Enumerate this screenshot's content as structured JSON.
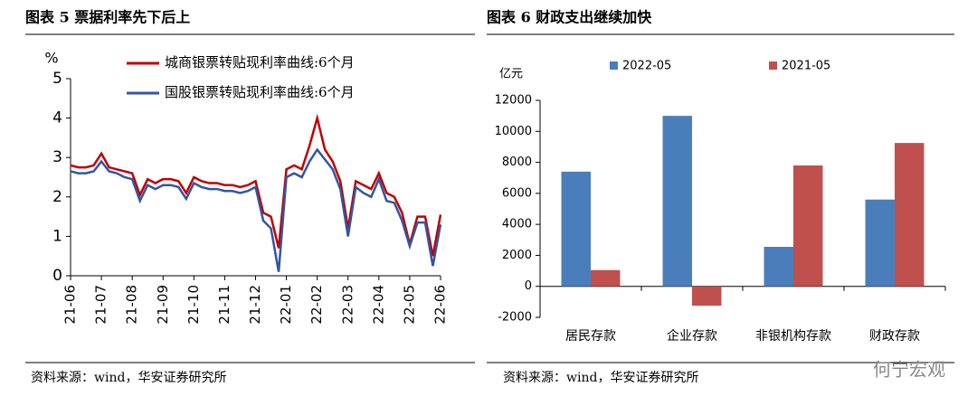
{
  "chart_data": [
    {
      "type": "line",
      "title": "图表 5 票据利率先下后上",
      "ylabel": "%",
      "source": "资料来源：wind，华安证券研究所",
      "categories": [
        "21-06",
        null,
        null,
        null,
        "21-07",
        null,
        null,
        null,
        "21-08",
        null,
        null,
        null,
        "21-09",
        null,
        null,
        null,
        "21-10",
        null,
        null,
        null,
        "21-11",
        null,
        null,
        null,
        "21-12",
        null,
        null,
        null,
        "22-01",
        null,
        null,
        null,
        "22-02",
        null,
        null,
        null,
        "22-03",
        null,
        null,
        null,
        "22-04",
        null,
        null,
        null,
        "22-05",
        null,
        null,
        null,
        "22-06"
      ],
      "series": [
        {
          "name": "城商银票转贴现利率曲线:6个月",
          "color": "#c00000",
          "values": [
            2.8,
            2.75,
            2.75,
            2.8,
            3.1,
            2.75,
            2.7,
            2.65,
            2.6,
            2.05,
            2.45,
            2.35,
            2.45,
            2.45,
            2.4,
            2.1,
            2.5,
            2.4,
            2.35,
            2.35,
            2.3,
            2.3,
            2.25,
            2.3,
            2.4,
            1.6,
            1.5,
            0.7,
            2.7,
            2.8,
            2.7,
            3.3,
            4.0,
            3.2,
            2.9,
            2.4,
            1.2,
            2.4,
            2.3,
            2.2,
            2.6,
            2.1,
            2.0,
            1.6,
            0.8,
            1.5,
            1.5,
            0.5,
            1.55
          ]
        },
        {
          "name": "国股银票转贴现利率曲线:6个月",
          "color": "#3355a0",
          "values": [
            2.65,
            2.6,
            2.6,
            2.65,
            2.9,
            2.65,
            2.6,
            2.5,
            2.45,
            1.9,
            2.3,
            2.2,
            2.3,
            2.3,
            2.25,
            1.95,
            2.35,
            2.25,
            2.2,
            2.2,
            2.15,
            2.15,
            2.1,
            2.15,
            2.25,
            1.4,
            1.2,
            0.1,
            2.5,
            2.6,
            2.5,
            2.9,
            3.2,
            2.95,
            2.7,
            2.2,
            1.0,
            2.25,
            2.1,
            2.0,
            2.45,
            1.9,
            1.85,
            1.4,
            0.75,
            1.35,
            1.35,
            0.25,
            1.3
          ]
        }
      ],
      "ylim": [
        0,
        5
      ],
      "yticks": [
        0,
        1,
        2,
        3,
        4,
        5
      ],
      "legend": "upper-left"
    },
    {
      "type": "bar",
      "title": "图表 6 财政支出继续加快",
      "ylabel": "亿元",
      "source": "资料来源：wind，华安证券研究所",
      "categories": [
        "居民存款",
        "企业存款",
        "非银机构存款",
        "财政存款"
      ],
      "series": [
        {
          "name": "2022-05",
          "color": "#4a7ebb",
          "values": [
            7400,
            11000,
            2550,
            5600
          ]
        },
        {
          "name": "2021-05",
          "color": "#c0504d",
          "values": [
            1050,
            -1250,
            7800,
            9250
          ]
        }
      ],
      "ylim": [
        -2000,
        12000
      ],
      "yticks": [
        -2000,
        0,
        2000,
        4000,
        6000,
        8000,
        10000,
        12000
      ],
      "legend": "top"
    }
  ],
  "watermark": "何宁宏观"
}
